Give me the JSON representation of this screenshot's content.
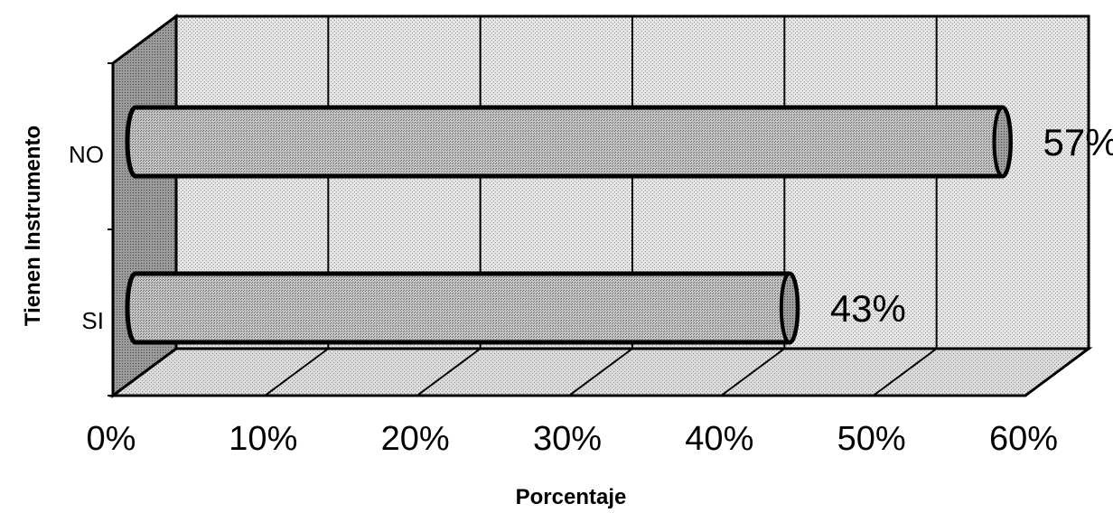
{
  "chart_data": {
    "type": "bar",
    "orientation": "horizontal",
    "style": "3d-cylinder",
    "categories": [
      "NO",
      "SI"
    ],
    "values": [
      57,
      43
    ],
    "value_labels": [
      "57%",
      "43%"
    ],
    "xlim": [
      0,
      60
    ],
    "x_ticks": [
      0,
      10,
      20,
      30,
      40,
      50,
      60
    ],
    "x_tick_labels": [
      "0%",
      "10%",
      "20%",
      "30%",
      "40%",
      "50%",
      "60%"
    ],
    "xlabel": "Porcentaje",
    "ylabel": "Tienen Instrumento",
    "grid": true,
    "legend": "none"
  }
}
